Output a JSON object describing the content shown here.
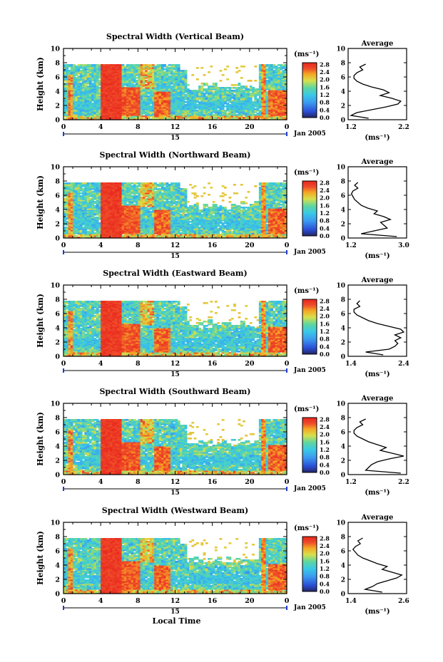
{
  "figure": {
    "x_axis_label": "Local Time",
    "colorbar_unit": "(ms⁻¹)",
    "date_label": "Jan 2005",
    "day_label": "15"
  },
  "chart_data": [
    {
      "type": "heatmap",
      "title": "Spectral Width (Vertical Beam)",
      "xlabel": "",
      "ylabel": "Height (km)",
      "x_ticks": [
        "0",
        "4",
        "8",
        "12",
        "16",
        "20",
        "0"
      ],
      "y_ticks": [
        "0",
        "2",
        "4",
        "6",
        "8",
        "10"
      ],
      "xlim": [
        0,
        24
      ],
      "ylim": [
        0,
        10
      ],
      "colorbar": {
        "unit": "(ms⁻¹)",
        "ticks": [
          "0.0",
          "0.4",
          "0.8",
          "1.2",
          "1.6",
          "2.0",
          "2.4",
          "2.8"
        ],
        "range": [
          0,
          2.8
        ]
      },
      "average_profile": {
        "title": "Average",
        "xlabel": "(ms⁻¹)",
        "x_ticks": [
          "1.2",
          "2.2"
        ],
        "xlim": [
          1.2,
          2.2
        ],
        "y_ticks": [
          "0",
          "2",
          "4",
          "6",
          "8",
          "10"
        ],
        "heights": [
          0.2,
          0.6,
          1.0,
          1.4,
          1.8,
          2.2,
          2.6,
          3.0,
          3.4,
          3.8,
          4.2,
          4.6,
          5.0,
          5.4,
          5.8,
          6.2,
          6.6,
          7.0,
          7.4,
          7.8
        ],
        "values": [
          1.55,
          1.25,
          1.35,
          1.6,
          1.85,
          2.05,
          2.1,
          1.95,
          1.75,
          1.9,
          1.8,
          1.6,
          1.45,
          1.35,
          1.3,
          1.3,
          1.35,
          1.45,
          1.4,
          1.5
        ]
      }
    },
    {
      "type": "heatmap",
      "title": "Spectral Width (Northward Beam)",
      "xlabel": "",
      "ylabel": "Height (km)",
      "x_ticks": [
        "0",
        "4",
        "8",
        "12",
        "16",
        "20",
        "0"
      ],
      "y_ticks": [
        "0",
        "2",
        "4",
        "6",
        "8",
        "10"
      ],
      "xlim": [
        0,
        24
      ],
      "ylim": [
        0,
        10
      ],
      "colorbar": {
        "unit": "(ms⁻¹)",
        "ticks": [
          "0.0",
          "0.4",
          "0.8",
          "1.2",
          "1.6",
          "2.0",
          "2.4",
          "2.8"
        ],
        "range": [
          0,
          2.8
        ]
      },
      "average_profile": {
        "title": "Average",
        "xlabel": "(ms⁻¹)",
        "x_ticks": [
          "1.2",
          "3.0"
        ],
        "xlim": [
          1.2,
          3.0
        ],
        "y_ticks": [
          "0",
          "2",
          "4",
          "6",
          "8",
          "10"
        ],
        "heights": [
          0.2,
          0.6,
          1.0,
          1.4,
          1.8,
          2.2,
          2.6,
          3.0,
          3.4,
          3.8,
          4.2,
          4.6,
          5.0,
          5.4,
          5.8,
          6.2,
          6.6,
          7.0,
          7.4,
          7.8
        ],
        "values": [
          2.7,
          1.6,
          2.0,
          2.4,
          2.3,
          2.2,
          2.5,
          2.3,
          2.0,
          2.1,
          1.8,
          1.6,
          1.5,
          1.4,
          1.35,
          1.3,
          1.35,
          1.5,
          1.4,
          1.5
        ]
      }
    },
    {
      "type": "heatmap",
      "title": "Spectral Width (Eastward Beam)",
      "xlabel": "",
      "ylabel": "Height (km)",
      "x_ticks": [
        "0",
        "4",
        "8",
        "12",
        "16",
        "20",
        "0"
      ],
      "y_ticks": [
        "0",
        "2",
        "4",
        "6",
        "8",
        "10"
      ],
      "xlim": [
        0,
        24
      ],
      "ylim": [
        0,
        10
      ],
      "colorbar": {
        "unit": "(ms⁻¹)",
        "ticks": [
          "0.0",
          "0.4",
          "0.8",
          "1.2",
          "1.6",
          "2.0",
          "2.4",
          "2.8"
        ],
        "range": [
          0,
          2.8
        ]
      },
      "average_profile": {
        "title": "Average",
        "xlabel": "(ms⁻¹)",
        "x_ticks": [
          "1.4",
          "2.4"
        ],
        "xlim": [
          1.4,
          2.4
        ],
        "y_ticks": [
          "0",
          "2",
          "4",
          "6",
          "8",
          "10"
        ],
        "heights": [
          0.2,
          0.6,
          1.0,
          1.4,
          1.8,
          2.2,
          2.6,
          3.0,
          3.4,
          3.8,
          4.2,
          4.6,
          5.0,
          5.4,
          5.8,
          6.2,
          6.6,
          7.0,
          7.4,
          7.8
        ],
        "values": [
          2.0,
          1.7,
          2.1,
          2.2,
          2.25,
          2.2,
          2.3,
          2.2,
          2.35,
          2.3,
          2.1,
          1.9,
          1.75,
          1.65,
          1.55,
          1.5,
          1.5,
          1.6,
          1.55,
          1.6
        ]
      }
    },
    {
      "type": "heatmap",
      "title": "Spectral Width (Southward Beam)",
      "xlabel": "",
      "ylabel": "Height (km)",
      "x_ticks": [
        "0",
        "4",
        "8",
        "12",
        "16",
        "20",
        "0"
      ],
      "y_ticks": [
        "0",
        "2",
        "4",
        "6",
        "8",
        "10"
      ],
      "xlim": [
        0,
        24
      ],
      "ylim": [
        0,
        10
      ],
      "colorbar": {
        "unit": "(ms⁻¹)",
        "ticks": [
          "0.0",
          "0.4",
          "0.8",
          "1.2",
          "1.6",
          "2.0",
          "2.4",
          "2.8"
        ],
        "range": [
          0,
          2.8
        ]
      },
      "average_profile": {
        "title": "Average",
        "xlabel": "(ms⁻¹)",
        "x_ticks": [
          "1.2",
          "2.2"
        ],
        "xlim": [
          1.2,
          2.2
        ],
        "y_ticks": [
          "0",
          "2",
          "4",
          "6",
          "8",
          "10"
        ],
        "heights": [
          0.2,
          0.6,
          1.0,
          1.4,
          1.8,
          2.2,
          2.6,
          3.0,
          3.4,
          3.8,
          4.2,
          4.6,
          5.0,
          5.4,
          5.8,
          6.2,
          6.6,
          7.0,
          7.4,
          7.8
        ],
        "values": [
          2.1,
          1.5,
          1.55,
          1.6,
          1.7,
          1.9,
          2.15,
          1.95,
          1.75,
          1.85,
          1.7,
          1.55,
          1.45,
          1.35,
          1.3,
          1.3,
          1.35,
          1.45,
          1.4,
          1.5
        ]
      }
    },
    {
      "type": "heatmap",
      "title": "Spectral Width (Westward Beam)",
      "xlabel": "Local Time",
      "ylabel": "Height (km)",
      "x_ticks": [
        "0",
        "4",
        "8",
        "12",
        "16",
        "20",
        "0"
      ],
      "y_ticks": [
        "0",
        "2",
        "4",
        "6",
        "8",
        "10"
      ],
      "xlim": [
        0,
        24
      ],
      "ylim": [
        0,
        10
      ],
      "colorbar": {
        "unit": "(ms⁻¹)",
        "ticks": [
          "0.0",
          "0.4",
          "0.8",
          "1.2",
          "1.6",
          "2.0",
          "2.4",
          "2.8"
        ],
        "range": [
          0,
          2.8
        ]
      },
      "average_profile": {
        "title": "Average",
        "xlabel": "(ms⁻¹)",
        "x_ticks": [
          "1.4",
          "2.6"
        ],
        "xlim": [
          1.4,
          2.6
        ],
        "y_ticks": [
          "0",
          "2",
          "4",
          "6",
          "8",
          "10"
        ],
        "heights": [
          0.2,
          0.6,
          1.0,
          1.4,
          1.8,
          2.2,
          2.6,
          3.0,
          3.4,
          3.8,
          4.2,
          4.6,
          5.0,
          5.4,
          5.8,
          6.2,
          6.6,
          7.0,
          7.4,
          7.8
        ],
        "values": [
          2.1,
          1.75,
          1.9,
          2.0,
          2.2,
          2.4,
          2.5,
          2.3,
          2.1,
          2.2,
          2.0,
          1.85,
          1.7,
          1.6,
          1.55,
          1.5,
          1.55,
          1.65,
          1.6,
          1.7
        ]
      }
    }
  ]
}
